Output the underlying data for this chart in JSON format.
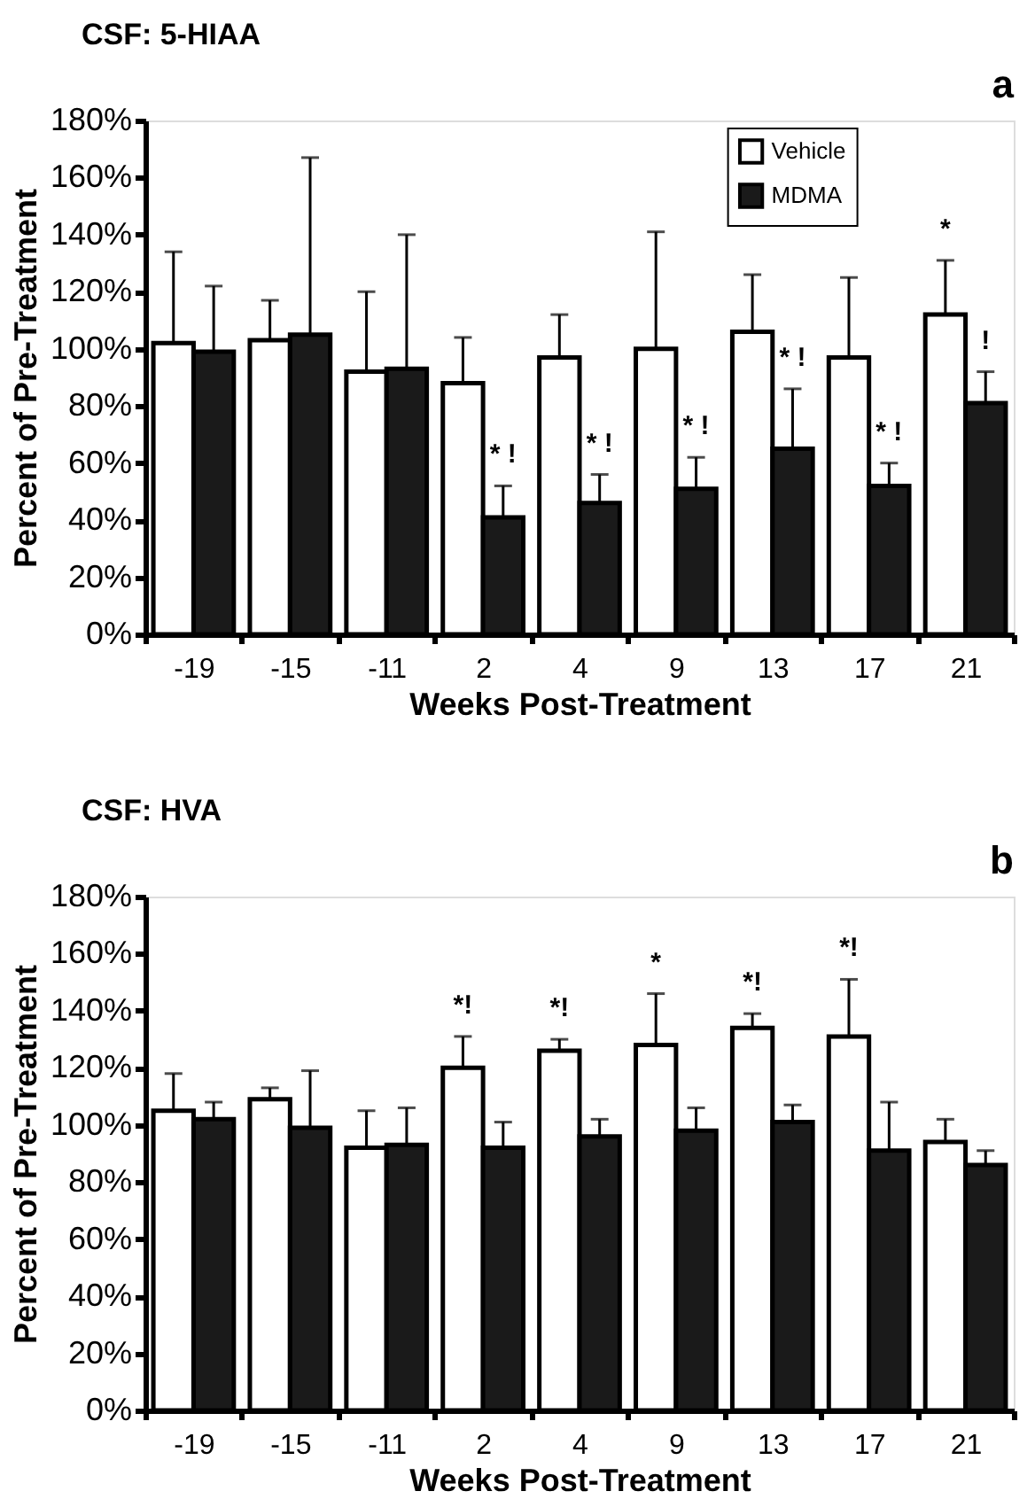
{
  "chart_data": [
    {
      "type": "bar",
      "title": "CSF:  5-HIAA",
      "xlabel": "Weeks Post-Treatment",
      "ylabel": "Percent of Pre-Treatment",
      "categories": [
        "-19",
        "-15",
        "-11",
        "2",
        "4",
        "9",
        "13",
        "17",
        "21"
      ],
      "series": [
        {
          "name": "Vehicle",
          "color": "#ffffff",
          "values": [
            102,
            103,
            92,
            88,
            97,
            100,
            106,
            97,
            112
          ],
          "errors": [
            [
              102,
              134
            ],
            [
              103,
              117
            ],
            [
              92,
              120
            ],
            [
              88,
              104
            ],
            [
              97,
              112
            ],
            [
              100,
              141
            ],
            [
              106,
              126
            ],
            [
              97,
              125
            ],
            [
              112,
              131
            ]
          ]
        },
        {
          "name": "MDMA",
          "color": "#1a1a1a",
          "values": [
            99,
            105,
            93,
            41,
            46,
            51,
            65,
            52,
            81
          ],
          "errors": [
            [
              99,
              122
            ],
            [
              105,
              167
            ],
            [
              93,
              140
            ],
            [
              41,
              52
            ],
            [
              46,
              56
            ],
            [
              51,
              62
            ],
            [
              65,
              86
            ],
            [
              52,
              60
            ],
            [
              81,
              92
            ]
          ]
        }
      ],
      "ylim": [
        0,
        180
      ],
      "yticks": [
        {
          "value": 0,
          "label": "0%"
        },
        {
          "value": 20,
          "label": "20%"
        },
        {
          "value": 40,
          "label": "40%"
        },
        {
          "value": 60,
          "label": "60%"
        },
        {
          "value": 80,
          "label": "80%"
        },
        {
          "value": 100,
          "label": "100%"
        },
        {
          "value": 120,
          "label": "120%"
        },
        {
          "value": 140,
          "label": "140%"
        },
        {
          "value": 160,
          "label": "160%"
        },
        {
          "value": 180,
          "label": "180%"
        }
      ],
      "annotations": [
        "a",
        {
          "text": "* !",
          "x": "2",
          "y": 41
        },
        {
          "text": "* !",
          "x": "4",
          "y": 46
        },
        {
          "text": "* !",
          "x": "9",
          "y": 51
        },
        {
          "text": "* !",
          "x": "13",
          "y": 65
        },
        {
          "text": "* !",
          "x": "17",
          "y": 52
        },
        {
          "text": "*",
          "x": "21",
          "y": 112
        },
        {
          "text": "!",
          "x": "21",
          "y": 81
        }
      ],
      "grid": false,
      "legend": "top right"
    },
    {
      "type": "bar",
      "title": "CSF:  HVA",
      "xlabel": "Weeks Post-Treatment",
      "ylabel": "Percent of Pre-Treatment",
      "categories": [
        "-19",
        "-15",
        "-11",
        "2",
        "4",
        "9",
        "13",
        "17",
        "21"
      ],
      "series": [
        {
          "color": "#ffffff",
          "values": [
            105,
            109,
            92,
            120,
            126,
            128,
            134,
            131,
            94
          ],
          "errors": [
            [
              105,
              118
            ],
            [
              109,
              113
            ],
            [
              92,
              105
            ],
            [
              120,
              131
            ],
            [
              126,
              130
            ],
            [
              128,
              146
            ],
            [
              134,
              139
            ],
            [
              131,
              151
            ],
            [
              94,
              102
            ]
          ]
        },
        {
          "color": "#1a1a1a",
          "values": [
            102,
            99,
            93,
            92,
            96,
            98,
            101,
            91,
            86
          ],
          "errors": [
            [
              102,
              108
            ],
            [
              99,
              119
            ],
            [
              93,
              106
            ],
            [
              92,
              101
            ],
            [
              96,
              102
            ],
            [
              98,
              106
            ],
            [
              101,
              107
            ],
            [
              91,
              108
            ],
            [
              86,
              91
            ]
          ]
        }
      ],
      "ylim": [
        0,
        180
      ],
      "yticks": [
        {
          "value": 0,
          "label": "0%"
        },
        {
          "value": 20,
          "label": "20%"
        },
        {
          "value": 40,
          "label": "40%"
        },
        {
          "value": 60,
          "label": "60%"
        },
        {
          "value": 80,
          "label": "80%"
        },
        {
          "value": 100,
          "label": "100%"
        },
        {
          "value": 120,
          "label": "120%"
        },
        {
          "value": 140,
          "label": "140%"
        },
        {
          "value": 160,
          "label": "160%"
        },
        {
          "value": 180,
          "label": "180%"
        }
      ],
      "annotations": [
        "b",
        {
          "text": "*!",
          "x": "2",
          "y": 120
        },
        {
          "text": "*!",
          "x": "4",
          "y": 126
        },
        {
          "text": "*",
          "x": "9",
          "y": 128
        },
        {
          "text": "*!",
          "x": "13",
          "y": 134
        },
        {
          "text": "*!",
          "x": "17",
          "y": 131
        }
      ],
      "grid": false,
      "legend": false
    }
  ]
}
